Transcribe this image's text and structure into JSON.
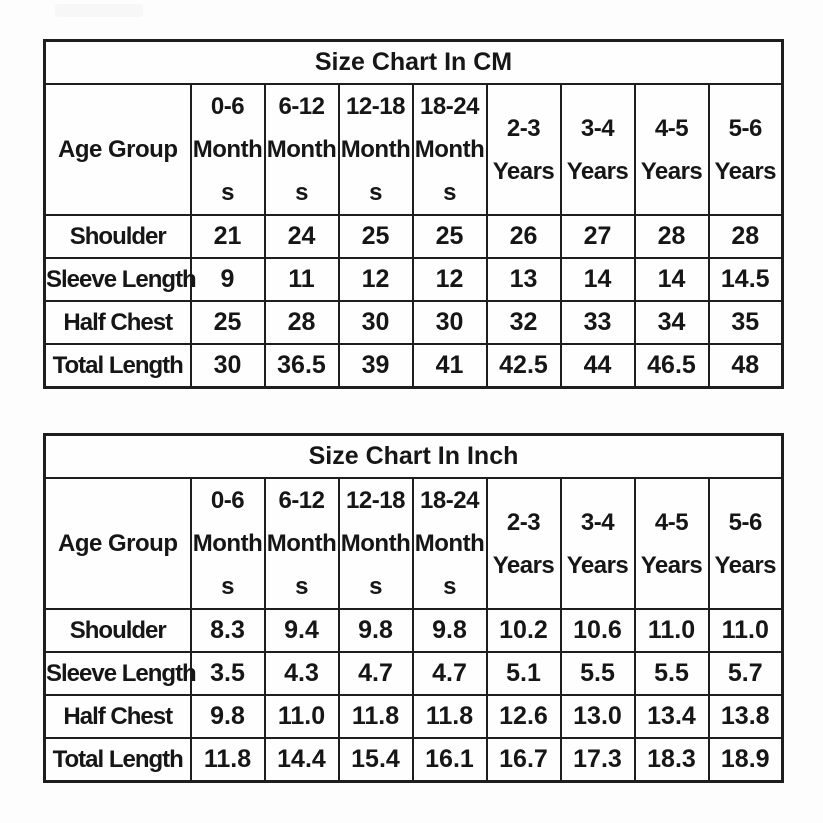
{
  "page": {
    "background": "#fdfdfd",
    "badge_color": "#f7f7f7",
    "border_color": "#1e1e1e",
    "text_color": "#161616"
  },
  "tables": [
    {
      "id": "cm",
      "title": "Size Chart In CM",
      "corner_label": "Age Group",
      "column_headers": [
        "0-6\nMonth\ns",
        "6-12\nMonth\ns",
        "12-18\nMonth\ns",
        "18-24\nMonth\ns",
        "2-3\nYears",
        "3-4\nYears",
        "4-5\nYears",
        "5-6\nYears"
      ],
      "rows": [
        {
          "label": "Shoulder",
          "values": [
            "21",
            "24",
            "25",
            "25",
            "26",
            "27",
            "28",
            "28"
          ]
        },
        {
          "label": "Sleeve Length",
          "values": [
            "9",
            "11",
            "12",
            "12",
            "13",
            "14",
            "14",
            "14.5"
          ]
        },
        {
          "label": "Half Chest",
          "values": [
            "25",
            "28",
            "30",
            "30",
            "32",
            "33",
            "34",
            "35"
          ]
        },
        {
          "label": "Total Length",
          "values": [
            "30",
            "36.5",
            "39",
            "41",
            "42.5",
            "44",
            "46.5",
            "48"
          ]
        }
      ]
    },
    {
      "id": "inch",
      "title": "Size Chart In Inch",
      "corner_label": "Age Group",
      "column_headers": [
        "0-6\nMonth\ns",
        "6-12\nMonth\ns",
        "12-18\nMonth\ns",
        "18-24\nMonth\ns",
        "2-3\nYears",
        "3-4\nYears",
        "4-5\nYears",
        "5-6\nYears"
      ],
      "rows": [
        {
          "label": "Shoulder",
          "values": [
            "8.3",
            "9.4",
            "9.8",
            "9.8",
            "10.2",
            "10.6",
            "11.0",
            "11.0"
          ]
        },
        {
          "label": "Sleeve Length",
          "values": [
            "3.5",
            "4.3",
            "4.7",
            "4.7",
            "5.1",
            "5.5",
            "5.5",
            "5.7"
          ]
        },
        {
          "label": "Half Chest",
          "values": [
            "9.8",
            "11.0",
            "11.8",
            "11.8",
            "12.6",
            "13.0",
            "13.4",
            "13.8"
          ]
        },
        {
          "label": "Total Length",
          "values": [
            "11.8",
            "14.4",
            "15.4",
            "16.1",
            "16.7",
            "17.3",
            "18.3",
            "18.9"
          ]
        }
      ]
    }
  ]
}
